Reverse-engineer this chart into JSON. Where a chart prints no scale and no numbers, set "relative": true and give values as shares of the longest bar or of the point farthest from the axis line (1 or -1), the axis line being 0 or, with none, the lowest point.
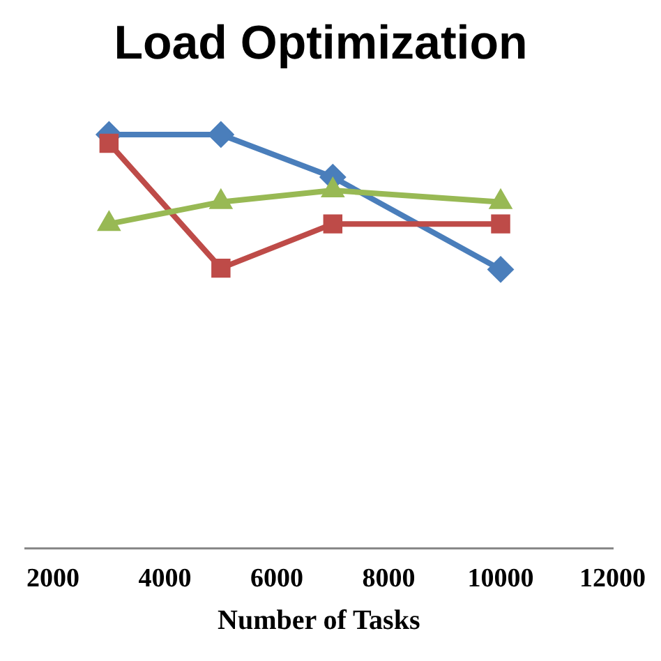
{
  "chart_data": {
    "type": "line",
    "title": "Load Optimization",
    "xlabel": "Number of Tasks",
    "relative": true,
    "xlim": [
      1500,
      12000
    ],
    "xticks": [
      2000,
      4000,
      6000,
      8000,
      10000,
      12000
    ],
    "grid": false,
    "legend": false,
    "x": [
      3000,
      5000,
      7000,
      10000
    ],
    "series": [
      {
        "color": "#4a7ebb",
        "marker": "diamond",
        "values": [
          1,
          1,
          0.897,
          0.674
        ]
      },
      {
        "color": "#be4b48",
        "marker": "square",
        "values": [
          0.979,
          0.677,
          0.784,
          0.784
        ]
      },
      {
        "color": "#98b954",
        "marker": "triangle",
        "values": [
          0.784,
          0.837,
          0.865,
          0.837
        ]
      }
    ]
  }
}
